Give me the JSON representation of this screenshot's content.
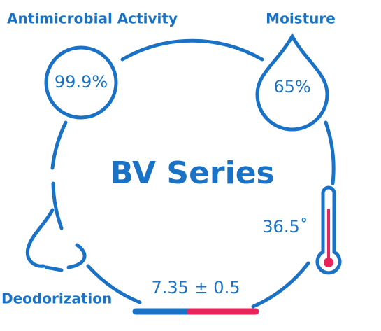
{
  "title": "BV Series",
  "features": [
    {
      "label": "Antimicrobial Activity",
      "value": "99.9%"
    },
    {
      "label": "Moisture",
      "value": "65%"
    },
    {
      "value": "36.5˚"
    },
    {
      "label": "Deodorization"
    },
    {
      "value": "7.35 ± 0.5"
    }
  ]
}
